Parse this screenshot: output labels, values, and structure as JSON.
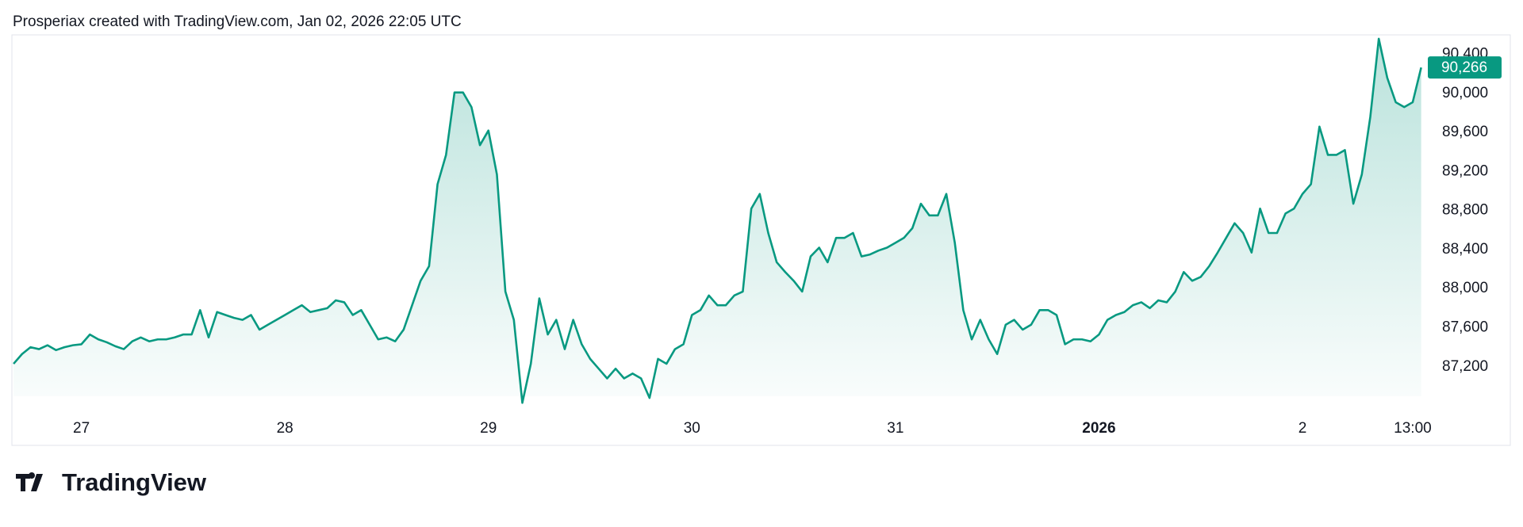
{
  "header": "Prosperiax created with TradingView.com, Jan 02, 2026 22:05 UTC",
  "footer": {
    "logo": "TradingView"
  },
  "chart_data": {
    "type": "area",
    "color": "#089981",
    "categories": [
      null,
      null,
      null,
      null,
      null,
      null,
      null,
      null,
      "27",
      null,
      null,
      null,
      null,
      null,
      null,
      null,
      null,
      null,
      null,
      null,
      null,
      null,
      null,
      null,
      null,
      null,
      null,
      null,
      null,
      null,
      null,
      null,
      "28",
      null,
      null,
      null,
      null,
      null,
      null,
      null,
      null,
      null,
      null,
      null,
      null,
      null,
      null,
      null,
      null,
      null,
      null,
      null,
      null,
      null,
      null,
      null,
      "29",
      null,
      null,
      null,
      null,
      null,
      null,
      null,
      null,
      null,
      null,
      null,
      null,
      null,
      null,
      null,
      null,
      null,
      null,
      null,
      null,
      null,
      null,
      null,
      "30",
      null,
      null,
      null,
      null,
      null,
      null,
      null,
      null,
      null,
      null,
      null,
      null,
      null,
      null,
      null,
      null,
      null,
      null,
      null,
      null,
      null,
      null,
      null,
      "31",
      null,
      null,
      null,
      null,
      null,
      null,
      null,
      null,
      null,
      null,
      null,
      null,
      null,
      null,
      null,
      null,
      null,
      null,
      null,
      null,
      null,
      null,
      null,
      "2026",
      null,
      null,
      null,
      null,
      null,
      null,
      null,
      null,
      null,
      null,
      null,
      null,
      null,
      null,
      null,
      null,
      null,
      null,
      null,
      null,
      null,
      null,
      null,
      "2",
      null,
      null,
      null,
      null,
      null,
      null,
      null,
      null,
      null,
      null,
      null,
      null,
      "13:00",
      null
    ],
    "values": [
      87230,
      87330,
      87400,
      87380,
      87420,
      87370,
      87400,
      87420,
      87430,
      87530,
      87480,
      87450,
      87410,
      87380,
      87460,
      87500,
      87460,
      87480,
      87480,
      87500,
      87530,
      87530,
      87780,
      87500,
      87760,
      87730,
      87700,
      87680,
      87730,
      87580,
      87630,
      87680,
      87730,
      87780,
      87830,
      87760,
      87780,
      87800,
      87880,
      87860,
      87730,
      87780,
      87630,
      87480,
      87500,
      87460,
      87580,
      87830,
      88080,
      88230,
      89070,
      89370,
      90010,
      90010,
      89860,
      89470,
      89620,
      89170,
      87970,
      87680,
      86830,
      87230,
      87900,
      87530,
      87680,
      87380,
      87680,
      87430,
      87280,
      87180,
      87080,
      87180,
      87080,
      87130,
      87080,
      86880,
      87280,
      87230,
      87380,
      87430,
      87730,
      87780,
      87930,
      87830,
      87830,
      87930,
      87970,
      88820,
      88970,
      88570,
      88270,
      88170,
      88080,
      87970,
      88330,
      88420,
      88270,
      88520,
      88520,
      88570,
      88330,
      88350,
      88390,
      88420,
      88470,
      88520,
      88620,
      88870,
      88750,
      88750,
      88970,
      88470,
      87780,
      87480,
      87680,
      87480,
      87330,
      87630,
      87680,
      87580,
      87630,
      87780,
      87780,
      87730,
      87430,
      87480,
      87480,
      87460,
      87530,
      87680,
      87730,
      87760,
      87830,
      87860,
      87800,
      87880,
      87860,
      87970,
      88170,
      88080,
      88120,
      88230,
      88370,
      88520,
      88670,
      88570,
      88370,
      88820,
      88570,
      88570,
      88770,
      88820,
      88970,
      89070,
      89660,
      89370,
      89370,
      89420,
      88870,
      89170,
      89760,
      90560,
      90160,
      89910,
      89860,
      89910,
      90266
    ],
    "value_labels": [
      null,
      null,
      null,
      null,
      null,
      null,
      null,
      null,
      null,
      null,
      null,
      null,
      null,
      null,
      null,
      null,
      null,
      null,
      null,
      null,
      null,
      null,
      null,
      null,
      null,
      null,
      null,
      null,
      null,
      null,
      null,
      null,
      null,
      null,
      null,
      null,
      null,
      null,
      null,
      null,
      null,
      null,
      null,
      null,
      null,
      null,
      null,
      null,
      null,
      null,
      null,
      null,
      null,
      null,
      null,
      null,
      null,
      null,
      null,
      null,
      null,
      null,
      null,
      null,
      null,
      null,
      null,
      null,
      null,
      null,
      null,
      null,
      null,
      null,
      null,
      null,
      null,
      null,
      null,
      null,
      null,
      null,
      null,
      null,
      null,
      null,
      null,
      null,
      null,
      null,
      null,
      null,
      null,
      null,
      null,
      null,
      null,
      null,
      null,
      null,
      null,
      null,
      null,
      null,
      null,
      null,
      null,
      null,
      null,
      null,
      null,
      null,
      null,
      null,
      null,
      null,
      null,
      null,
      null,
      null,
      null,
      null,
      null,
      null,
      null,
      null,
      null,
      null,
      null,
      null,
      null,
      null,
      null,
      null,
      null,
      null,
      null,
      null,
      null,
      null,
      null,
      null,
      null,
      null,
      null,
      null,
      null,
      null,
      null,
      null,
      null,
      null,
      null,
      null,
      null,
      null,
      null,
      null,
      null,
      null,
      null,
      null,
      null,
      null,
      null,
      null,
      "90,266"
    ],
    "ylim": [
      86800,
      90600
    ],
    "yticks": [
      {
        "value": 87200,
        "label": "87,200"
      },
      {
        "value": 87600,
        "label": "87,600"
      },
      {
        "value": 88000,
        "label": "88,000"
      },
      {
        "value": 88400,
        "label": "88,400"
      },
      {
        "value": 88800,
        "label": "88,800"
      },
      {
        "value": 89200,
        "label": "89,200"
      },
      {
        "value": 89600,
        "label": "89,600"
      },
      {
        "value": 90000,
        "label": "90,000"
      },
      {
        "value": 90400,
        "label": "90,400"
      }
    ]
  }
}
